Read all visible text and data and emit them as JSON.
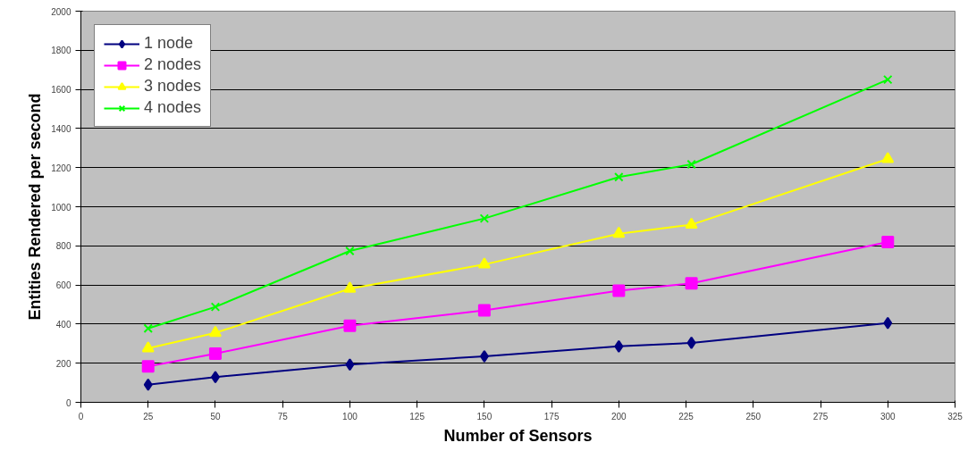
{
  "chart_data": {
    "type": "line",
    "xlabel": "Number of Sensors",
    "ylabel": "Entities Rendered per second",
    "x": [
      25,
      50,
      100,
      150,
      200,
      227,
      300
    ],
    "series": [
      {
        "name": "1 node",
        "color": "#000080",
        "marker": "diamond",
        "values": [
          90,
          129,
          193,
          235,
          286,
          304,
          405
        ]
      },
      {
        "name": "2 nodes",
        "color": "#ff00ff",
        "marker": "square",
        "values": [
          184,
          249,
          392,
          470,
          571,
          608,
          820
        ]
      },
      {
        "name": "3 nodes",
        "color": "#ffff00",
        "marker": "triangle",
        "values": [
          276,
          355,
          581,
          705,
          862,
          908,
          1244
        ]
      },
      {
        "name": "4 nodes",
        "color": "#00ff00",
        "marker": "cross",
        "values": [
          378,
          488,
          774,
          940,
          1152,
          1217,
          1650
        ]
      }
    ],
    "xlim": [
      0,
      325
    ],
    "xticks": [
      0,
      25,
      50,
      75,
      100,
      125,
      150,
      175,
      200,
      225,
      250,
      275,
      300,
      325
    ],
    "ylim": [
      0,
      2000
    ],
    "yticks": [
      0,
      200,
      400,
      600,
      800,
      1000,
      1200,
      1400,
      1600,
      1800,
      2000
    ],
    "grid": "y",
    "legend": "top left",
    "line_style": "solid"
  }
}
